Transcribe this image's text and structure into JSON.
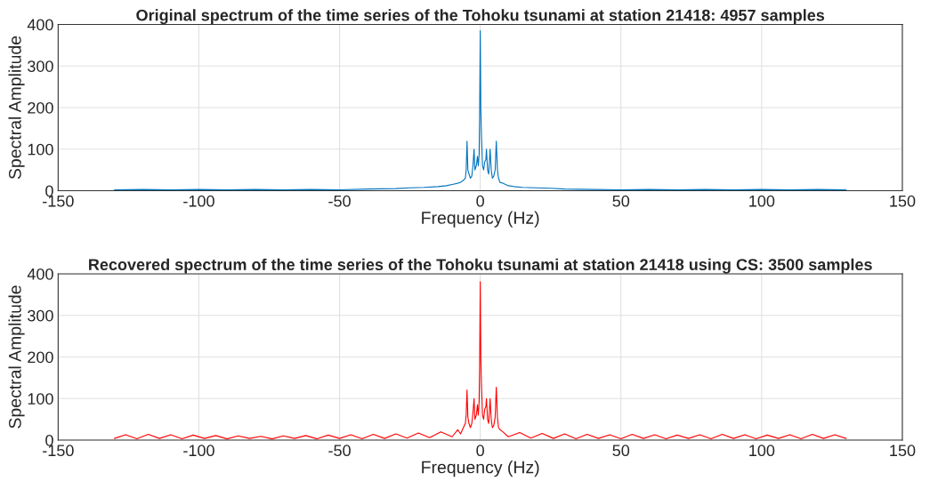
{
  "chart_data": [
    {
      "type": "line",
      "title": "Original spectrum of the time series of the Tohoku tsunami at station 21418: 4957 samples",
      "xlabel": "Frequency (Hz)",
      "ylabel": "Spectral Amplitude",
      "xlim": [
        -150,
        150
      ],
      "xticks": [
        -150,
        -100,
        -50,
        0,
        50,
        100,
        150
      ],
      "ylim": [
        0,
        400
      ],
      "yticks": [
        0,
        100,
        200,
        300,
        400
      ],
      "grid": true,
      "series": [
        {
          "color": "#0072bd",
          "x": [
            -130,
            -120,
            -110,
            -100,
            -90,
            -80,
            -70,
            -60,
            -50,
            -40,
            -30,
            -25,
            -20,
            -15,
            -12,
            -10,
            -8,
            -7,
            -6,
            -5.3,
            -5,
            -4.7,
            -4.4,
            -4,
            -3.5,
            -3,
            -2.6,
            -2.2,
            -1.9,
            -1.4,
            -1,
            -0.7,
            -0.4,
            -0.2,
            0,
            0.2,
            0.4,
            0.8,
            1.2,
            1.6,
            2,
            2.2,
            2.6,
            3,
            3.5,
            3.9,
            4.3,
            4.8,
            5.3,
            5.7,
            6.1,
            6.5,
            7,
            8,
            10,
            12,
            15,
            20,
            25,
            30,
            40,
            50,
            60,
            70,
            80,
            90,
            100,
            110,
            120,
            130
          ],
          "values": [
            2,
            3,
            2,
            3,
            2,
            3,
            2,
            3,
            2,
            4,
            5,
            7,
            8,
            10,
            12,
            15,
            18,
            20,
            25,
            30,
            50,
            119,
            50,
            40,
            30,
            35,
            60,
            100,
            50,
            60,
            83,
            60,
            90,
            200,
            385,
            200,
            140,
            60,
            50,
            70,
            75,
            100,
            50,
            40,
            100,
            50,
            30,
            35,
            50,
            119,
            50,
            30,
            20,
            18,
            12,
            10,
            8,
            7,
            6,
            4,
            3,
            2,
            3,
            2,
            3,
            2,
            3,
            2,
            3,
            2
          ]
        }
      ]
    },
    {
      "type": "line",
      "title": "Recovered spectrum of the time series of the Tohoku tsunami at station 21418 using CS: 3500 samples",
      "xlabel": "Frequency (Hz)",
      "ylabel": "Spectral Amplitude",
      "xlim": [
        -150,
        150
      ],
      "xticks": [
        -150,
        -100,
        -50,
        0,
        50,
        100,
        150
      ],
      "ylim": [
        0,
        400
      ],
      "yticks": [
        0,
        100,
        200,
        300,
        400
      ],
      "grid": true,
      "series": [
        {
          "color": "#ff0000",
          "x": [
            -130,
            -126,
            -122,
            -118,
            -114,
            -110,
            -106,
            -102,
            -98,
            -94,
            -90,
            -86,
            -82,
            -78,
            -74,
            -70,
            -66,
            -62,
            -58,
            -54,
            -50,
            -46,
            -42,
            -38,
            -34,
            -30,
            -26,
            -22,
            -18,
            -14,
            -10,
            -8,
            -7,
            -6,
            -5.3,
            -5,
            -4.7,
            -4.4,
            -4,
            -3.5,
            -3,
            -2.6,
            -2.2,
            -1.9,
            -1.4,
            -1,
            -0.7,
            -0.4,
            -0.2,
            0,
            0.2,
            0.4,
            0.8,
            1.2,
            1.6,
            2,
            2.2,
            2.6,
            3,
            3.5,
            3.9,
            4.3,
            4.8,
            5.3,
            5.7,
            6.1,
            6.5,
            7,
            8,
            10,
            14,
            18,
            22,
            26,
            30,
            34,
            38,
            42,
            46,
            50,
            54,
            58,
            62,
            66,
            70,
            74,
            78,
            82,
            86,
            90,
            94,
            98,
            102,
            106,
            110,
            114,
            118,
            122,
            126,
            130
          ],
          "values": [
            4,
            13,
            3,
            14,
            4,
            13,
            3,
            12,
            4,
            11,
            3,
            10,
            4,
            9,
            3,
            10,
            4,
            11,
            3,
            12,
            4,
            13,
            3,
            14,
            4,
            15,
            5,
            17,
            6,
            20,
            8,
            25,
            15,
            30,
            40,
            60,
            121,
            55,
            40,
            30,
            40,
            65,
            100,
            50,
            60,
            85,
            60,
            95,
            200,
            381,
            200,
            140,
            60,
            50,
            75,
            80,
            100,
            50,
            40,
            100,
            50,
            30,
            35,
            55,
            127,
            55,
            30,
            25,
            20,
            8,
            18,
            5,
            16,
            4,
            15,
            3,
            14,
            4,
            13,
            3,
            14,
            4,
            13,
            3,
            12,
            4,
            13,
            3,
            14,
            4,
            13,
            3,
            12,
            4,
            13,
            3,
            14,
            4,
            13,
            4
          ]
        }
      ]
    }
  ]
}
